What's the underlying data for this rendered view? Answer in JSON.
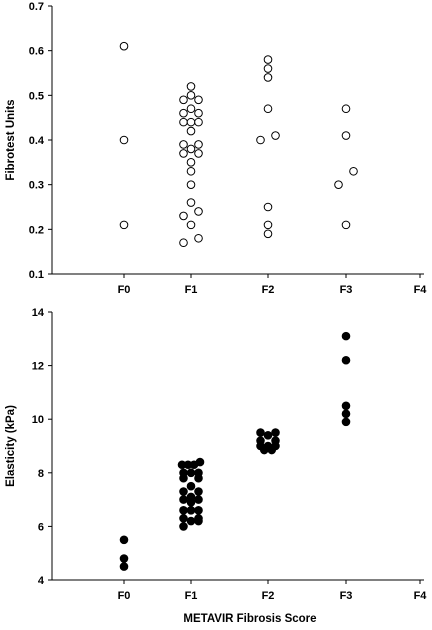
{
  "chart_data": [
    {
      "type": "scatter",
      "ylabel": "Fibrotest Units",
      "xlabel": "",
      "categories": [
        "F0",
        "F1",
        "F2",
        "F3",
        "F4"
      ],
      "ylim": [
        0.1,
        0.7
      ],
      "yticks": [
        "0.1",
        "0.2",
        "0.3",
        "0.4",
        "0.5",
        "0.6",
        "0.7"
      ],
      "grid": false,
      "marker": "open-circle",
      "colors": {
        "marker_stroke": "#000000",
        "marker_fill": "#ffffff"
      },
      "points": [
        {
          "category": "F0",
          "offset": 0,
          "y": 0.61
        },
        {
          "category": "F0",
          "offset": 0,
          "y": 0.4
        },
        {
          "category": "F0",
          "offset": 0,
          "y": 0.21
        },
        {
          "category": "F1",
          "offset": 0,
          "y": 0.52
        },
        {
          "category": "F1",
          "offset": -1,
          "y": 0.49
        },
        {
          "category": "F1",
          "offset": 0,
          "y": 0.5
        },
        {
          "category": "F1",
          "offset": 1,
          "y": 0.49
        },
        {
          "category": "F1",
          "offset": -1,
          "y": 0.46
        },
        {
          "category": "F1",
          "offset": 0,
          "y": 0.47
        },
        {
          "category": "F1",
          "offset": 1,
          "y": 0.46
        },
        {
          "category": "F1",
          "offset": -1,
          "y": 0.44
        },
        {
          "category": "F1",
          "offset": 0,
          "y": 0.44
        },
        {
          "category": "F1",
          "offset": 1,
          "y": 0.44
        },
        {
          "category": "F1",
          "offset": 0,
          "y": 0.42
        },
        {
          "category": "F1",
          "offset": -1,
          "y": 0.39
        },
        {
          "category": "F1",
          "offset": 1,
          "y": 0.39
        },
        {
          "category": "F1",
          "offset": 0,
          "y": 0.38
        },
        {
          "category": "F1",
          "offset": -1,
          "y": 0.37
        },
        {
          "category": "F1",
          "offset": 1,
          "y": 0.37
        },
        {
          "category": "F1",
          "offset": 0,
          "y": 0.35
        },
        {
          "category": "F1",
          "offset": 0,
          "y": 0.33
        },
        {
          "category": "F1",
          "offset": 0,
          "y": 0.3
        },
        {
          "category": "F1",
          "offset": 0,
          "y": 0.26
        },
        {
          "category": "F1",
          "offset": 1,
          "y": 0.24
        },
        {
          "category": "F1",
          "offset": -1,
          "y": 0.23
        },
        {
          "category": "F1",
          "offset": 0,
          "y": 0.21
        },
        {
          "category": "F1",
          "offset": 1,
          "y": 0.18
        },
        {
          "category": "F1",
          "offset": -1,
          "y": 0.17
        },
        {
          "category": "F2",
          "offset": 0,
          "y": 0.58
        },
        {
          "category": "F2",
          "offset": 0,
          "y": 0.56
        },
        {
          "category": "F2",
          "offset": 0,
          "y": 0.54
        },
        {
          "category": "F2",
          "offset": 0,
          "y": 0.47
        },
        {
          "category": "F2",
          "offset": 1,
          "y": 0.41
        },
        {
          "category": "F2",
          "offset": -1,
          "y": 0.4
        },
        {
          "category": "F2",
          "offset": 0,
          "y": 0.25
        },
        {
          "category": "F2",
          "offset": 0,
          "y": 0.21
        },
        {
          "category": "F2",
          "offset": 0,
          "y": 0.19
        },
        {
          "category": "F3",
          "offset": 0,
          "y": 0.47
        },
        {
          "category": "F3",
          "offset": 0,
          "y": 0.41
        },
        {
          "category": "F3",
          "offset": 1,
          "y": 0.33
        },
        {
          "category": "F3",
          "offset": -1,
          "y": 0.3
        },
        {
          "category": "F3",
          "offset": 0,
          "y": 0.21
        }
      ]
    },
    {
      "type": "scatter",
      "ylabel": "Elasticity (kPa)",
      "xlabel": "METAVIR Fibrosis Score",
      "categories": [
        "F0",
        "F1",
        "F2",
        "F3",
        "F4"
      ],
      "ylim": [
        4,
        14
      ],
      "yticks": [
        "4",
        "6",
        "8",
        "10",
        "12",
        "14"
      ],
      "grid": false,
      "marker": "filled-circle",
      "colors": {
        "marker_stroke": "#000000",
        "marker_fill": "#000000"
      },
      "points": [
        {
          "category": "F0",
          "offset": 0,
          "y": 5.5
        },
        {
          "category": "F0",
          "offset": 0,
          "y": 4.8
        },
        {
          "category": "F0",
          "offset": 0,
          "y": 4.5
        },
        {
          "category": "F1",
          "offset": -1.2,
          "y": 8.3
        },
        {
          "category": "F1",
          "offset": -0.4,
          "y": 8.3
        },
        {
          "category": "F1",
          "offset": 0.4,
          "y": 8.3
        },
        {
          "category": "F1",
          "offset": 1.2,
          "y": 8.4
        },
        {
          "category": "F1",
          "offset": -1,
          "y": 8.0
        },
        {
          "category": "F1",
          "offset": 0,
          "y": 8.0
        },
        {
          "category": "F1",
          "offset": 1,
          "y": 8.0
        },
        {
          "category": "F1",
          "offset": -1,
          "y": 7.8
        },
        {
          "category": "F1",
          "offset": 1,
          "y": 7.8
        },
        {
          "category": "F1",
          "offset": 0,
          "y": 7.5
        },
        {
          "category": "F1",
          "offset": -1,
          "y": 7.3
        },
        {
          "category": "F1",
          "offset": 1,
          "y": 7.3
        },
        {
          "category": "F1",
          "offset": 0,
          "y": 7.1
        },
        {
          "category": "F1",
          "offset": -1,
          "y": 7.0
        },
        {
          "category": "F1",
          "offset": 1,
          "y": 7.0
        },
        {
          "category": "F1",
          "offset": 0,
          "y": 6.9
        },
        {
          "category": "F1",
          "offset": -1,
          "y": 6.6
        },
        {
          "category": "F1",
          "offset": 0,
          "y": 6.6
        },
        {
          "category": "F1",
          "offset": 1,
          "y": 6.6
        },
        {
          "category": "F1",
          "offset": -1,
          "y": 6.3
        },
        {
          "category": "F1",
          "offset": 1,
          "y": 6.3
        },
        {
          "category": "F1",
          "offset": -1,
          "y": 6.0
        },
        {
          "category": "F1",
          "offset": 0,
          "y": 6.2
        },
        {
          "category": "F1",
          "offset": 1,
          "y": 6.2
        },
        {
          "category": "F2",
          "offset": -1,
          "y": 9.5
        },
        {
          "category": "F2",
          "offset": 0,
          "y": 9.4
        },
        {
          "category": "F2",
          "offset": 1,
          "y": 9.5
        },
        {
          "category": "F2",
          "offset": -1,
          "y": 9.2
        },
        {
          "category": "F2",
          "offset": 1,
          "y": 9.2
        },
        {
          "category": "F2",
          "offset": -1,
          "y": 9.0
        },
        {
          "category": "F2",
          "offset": 0,
          "y": 9.0
        },
        {
          "category": "F2",
          "offset": 1,
          "y": 9.0
        },
        {
          "category": "F2",
          "offset": -0.5,
          "y": 8.85
        },
        {
          "category": "F2",
          "offset": 0.5,
          "y": 8.85
        },
        {
          "category": "F3",
          "offset": 0,
          "y": 13.1
        },
        {
          "category": "F3",
          "offset": 0,
          "y": 12.2
        },
        {
          "category": "F3",
          "offset": 0,
          "y": 10.5
        },
        {
          "category": "F3",
          "offset": 0,
          "y": 10.2
        },
        {
          "category": "F3",
          "offset": 0,
          "y": 9.9
        }
      ]
    }
  ]
}
